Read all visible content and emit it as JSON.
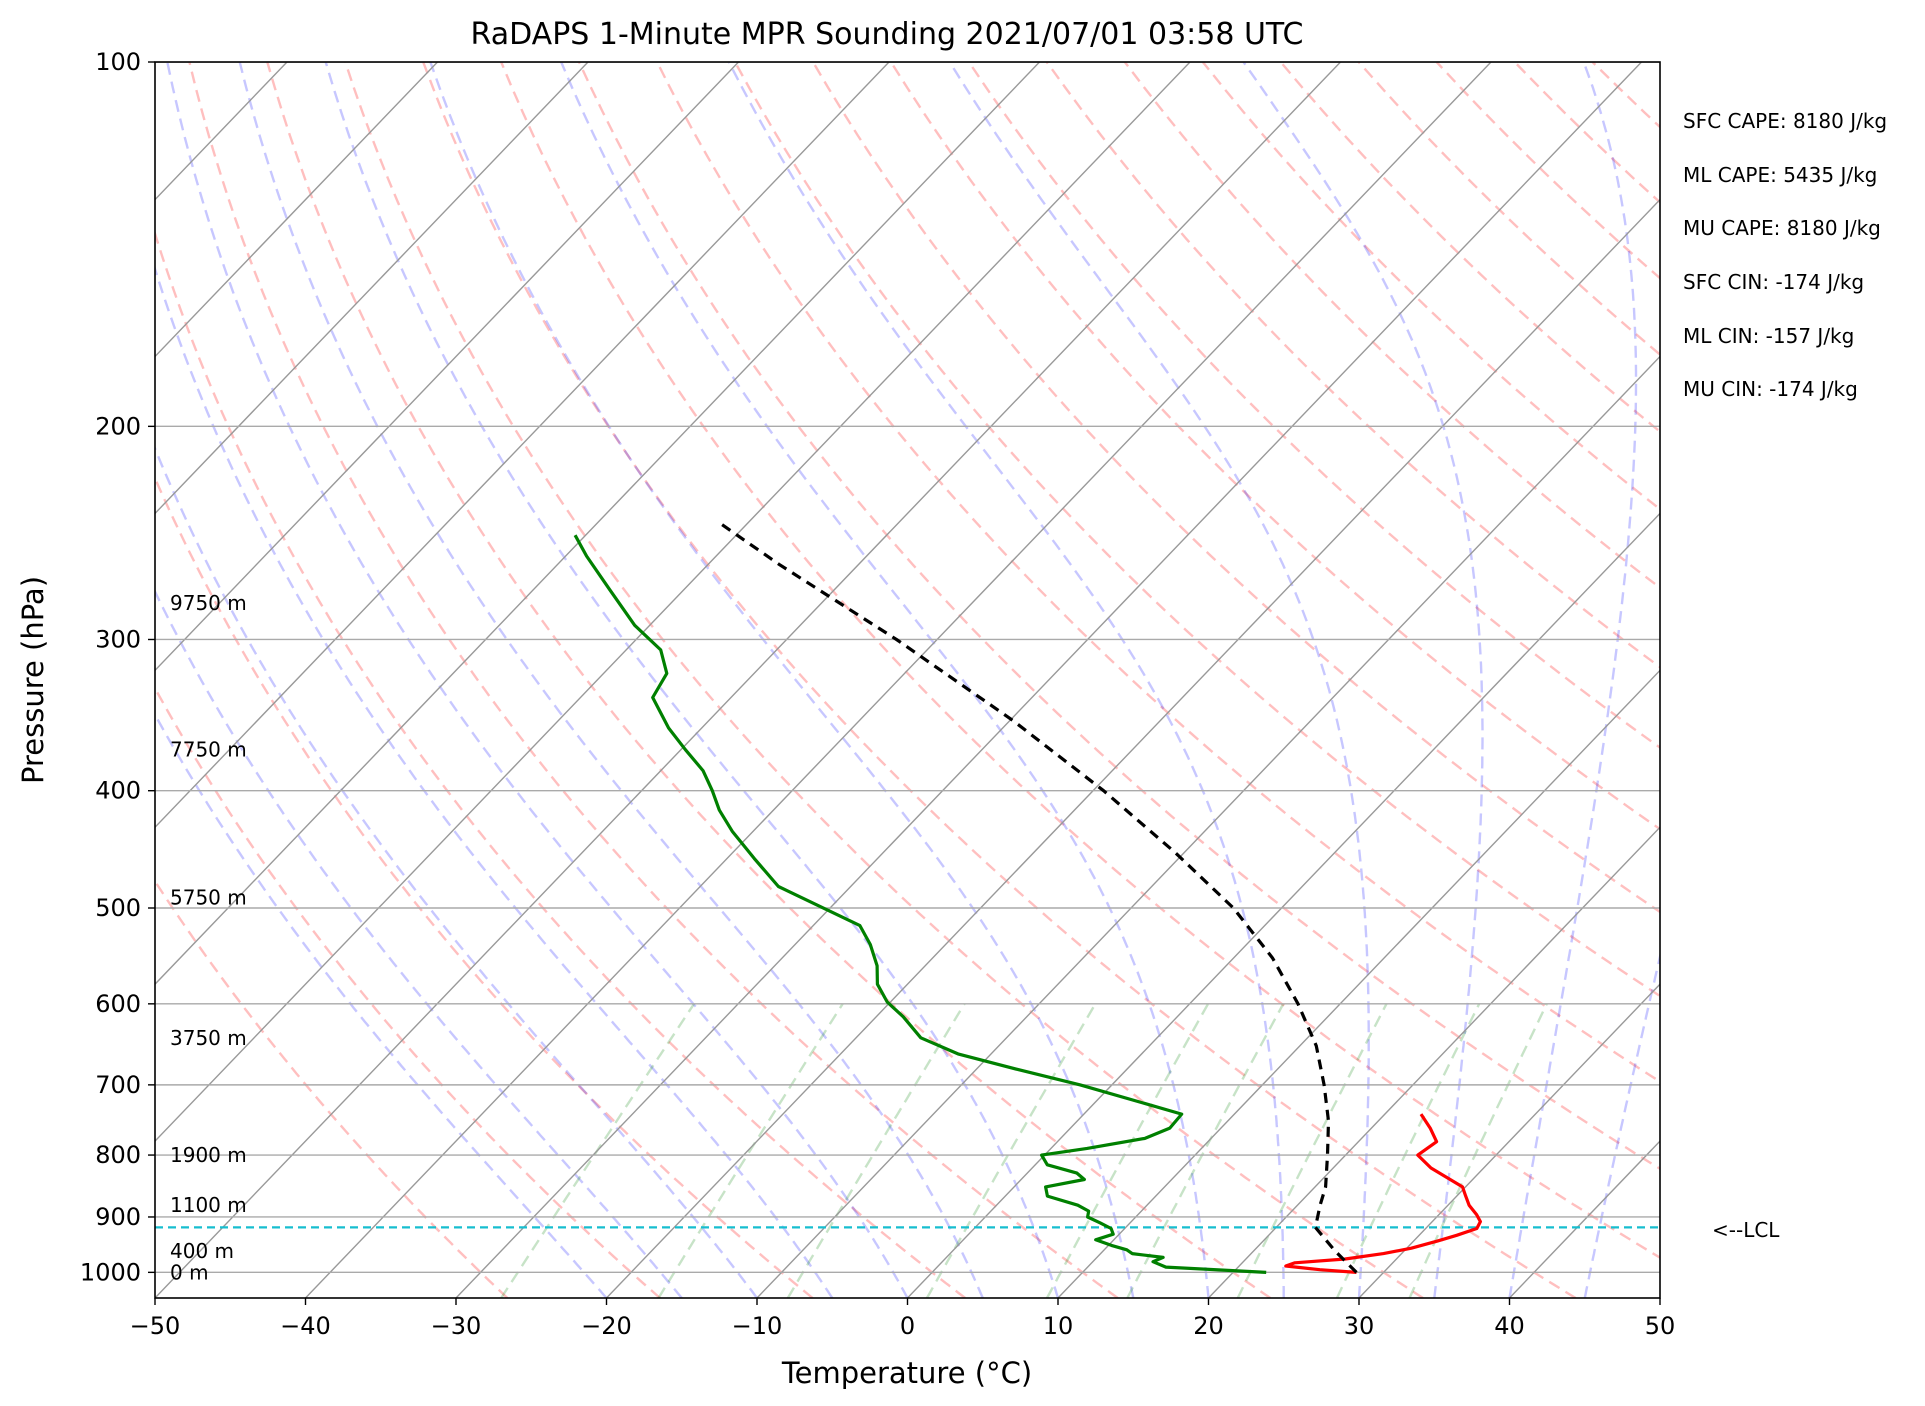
{
  "chart_data": {
    "type": "line",
    "title": "RaDAPS 1-Minute MPR Sounding 2021/07/01 03:58 UTC",
    "xlabel": "Temperature (°C)",
    "ylabel": "Pressure (hPa)",
    "xlim": [
      -50,
      50
    ],
    "ylim": [
      1050,
      100
    ],
    "y_scale": "log",
    "skew_T": true,
    "x_ticks": [
      "−50",
      "−40",
      "−30",
      "−20",
      "−10",
      "0",
      "10",
      "20",
      "30",
      "40",
      "50"
    ],
    "y_ticks": [
      "100",
      "200",
      "300",
      "400",
      "500",
      "600",
      "700",
      "800",
      "900",
      "1000"
    ],
    "height_labels": [
      {
        "p": 1000,
        "label": "0 m"
      },
      {
        "p": 960,
        "label": "400 m"
      },
      {
        "p": 880,
        "label": "1100 m"
      },
      {
        "p": 800,
        "label": "1900 m"
      },
      {
        "p": 640,
        "label": "3750 m"
      },
      {
        "p": 490,
        "label": "5750 m"
      },
      {
        "p": 370,
        "label": "7750 m"
      },
      {
        "p": 280,
        "label": "9750 m"
      }
    ],
    "lcl": {
      "p": 918,
      "label": "<--LCL"
    },
    "series": [
      {
        "name": "",
        "color": "#ff0000",
        "points": [
          [
            1000,
            28.2
          ],
          [
            995,
            25.6
          ],
          [
            988,
            23.1
          ],
          [
            982,
            23.5
          ],
          [
            975,
            26.6
          ],
          [
            965,
            28.8
          ],
          [
            955,
            30.3
          ],
          [
            942,
            31.6
          ],
          [
            932,
            32.5
          ],
          [
            920,
            33.4
          ],
          [
            908,
            33.2
          ],
          [
            896,
            32.5
          ],
          [
            880,
            31.4
          ],
          [
            865,
            30.6
          ],
          [
            850,
            29.8
          ],
          [
            820,
            26.5
          ],
          [
            800,
            24.8
          ],
          [
            780,
            25.2
          ],
          [
            760,
            23.9
          ],
          [
            740,
            22.4
          ]
        ]
      },
      {
        "name": "",
        "color": "#008000",
        "points": [
          [
            1000,
            22.2
          ],
          [
            990,
            15.2
          ],
          [
            980,
            14.0
          ],
          [
            972,
            14.4
          ],
          [
            965,
            12.1
          ],
          [
            958,
            11.5
          ],
          [
            950,
            10.2
          ],
          [
            940,
            8.8
          ],
          [
            930,
            9.6
          ],
          [
            920,
            9.1
          ],
          [
            910,
            8.0
          ],
          [
            900,
            6.8
          ],
          [
            890,
            6.5
          ],
          [
            880,
            5.4
          ],
          [
            865,
            2.8
          ],
          [
            850,
            2.1
          ],
          [
            838,
            4.2
          ],
          [
            828,
            3.3
          ],
          [
            815,
            0.8
          ],
          [
            800,
            -0.2
          ],
          [
            790,
            2.4
          ],
          [
            775,
            5.6
          ],
          [
            760,
            6.6
          ],
          [
            740,
            6.5
          ],
          [
            700,
            -2.1
          ],
          [
            680,
            -7.2
          ],
          [
            660,
            -12.2
          ],
          [
            640,
            -15.7
          ],
          [
            615,
            -18.2
          ],
          [
            598,
            -20.2
          ],
          [
            578,
            -22.0
          ],
          [
            558,
            -23.2
          ],
          [
            536,
            -25.0
          ],
          [
            517,
            -26.9
          ],
          [
            480,
            -34.8
          ],
          [
            455,
            -38.2
          ],
          [
            432,
            -41.4
          ],
          [
            415,
            -43.6
          ],
          [
            400,
            -45.3
          ],
          [
            385,
            -47.2
          ],
          [
            370,
            -49.7
          ],
          [
            355,
            -52.2
          ],
          [
            335,
            -55.2
          ],
          [
            320,
            -55.8
          ],
          [
            306,
            -57.7
          ],
          [
            292,
            -61.0
          ],
          [
            273,
            -64.9
          ],
          [
            256,
            -68.6
          ],
          [
            246,
            -70.7
          ]
        ]
      },
      {
        "name": "",
        "color": "#000000",
        "dashed": true,
        "points": [
          [
            1000,
            28.2
          ],
          [
            960,
            25.4
          ],
          [
            918,
            22.6
          ],
          [
            880,
            21.5
          ],
          [
            850,
            20.7
          ],
          [
            800,
            18.8
          ],
          [
            750,
            16.7
          ],
          [
            700,
            14.1
          ],
          [
            650,
            11.1
          ],
          [
            600,
            7.2
          ],
          [
            550,
            2.6
          ],
          [
            500,
            -3.2
          ],
          [
            450,
            -10.6
          ],
          [
            400,
            -19.3
          ],
          [
            350,
            -29.8
          ],
          [
            300,
            -42.7
          ],
          [
            260,
            -55.3
          ],
          [
            240,
            -62.0
          ]
        ]
      }
    ],
    "grid": true
  },
  "stats": [
    "SFC CAPE: 8180 J/kg",
    "ML CAPE: 5435 J/kg",
    "MU CAPE: 8180 J/kg",
    "SFC CIN: -174 J/kg",
    "ML CIN: -157 J/kg",
    "MU CIN: -174 J/kg"
  ]
}
